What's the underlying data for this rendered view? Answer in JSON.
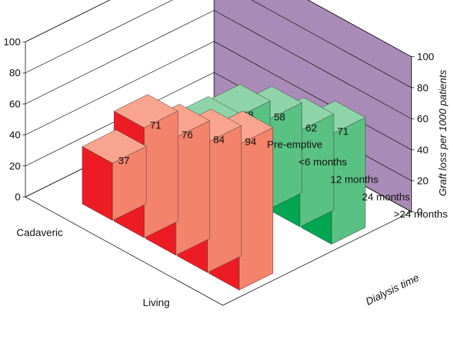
{
  "chart_data": {
    "type": "bar",
    "subtype": "3d-bar",
    "title": "",
    "xlabel": "Dialysis time",
    "ylabel": "Graft loss per 1000 patients",
    "ylim": [
      0,
      100
    ],
    "yticks": [
      "0",
      "20",
      "40",
      "60",
      "80",
      "100"
    ],
    "categories": [
      "Pre-emptive",
      "<6 months",
      "12 months",
      "24 months",
      ">24 months"
    ],
    "series": [
      {
        "name": "Cadaveric",
        "values": [
          37,
          71,
          76,
          84,
          94
        ]
      },
      {
        "name": "Living",
        "values": [
          29,
          48,
          58,
          62,
          71
        ]
      }
    ],
    "colors": {
      "Cadaveric": {
        "front": "#ed1c24",
        "side": "#f4836b",
        "top": "#f9a48e"
      },
      "Living": {
        "front": "#00a651",
        "side": "#59c182",
        "top": "#8fd4a8"
      },
      "back_wall": "#a98bb7",
      "grid": "#000000"
    },
    "grid": true
  }
}
